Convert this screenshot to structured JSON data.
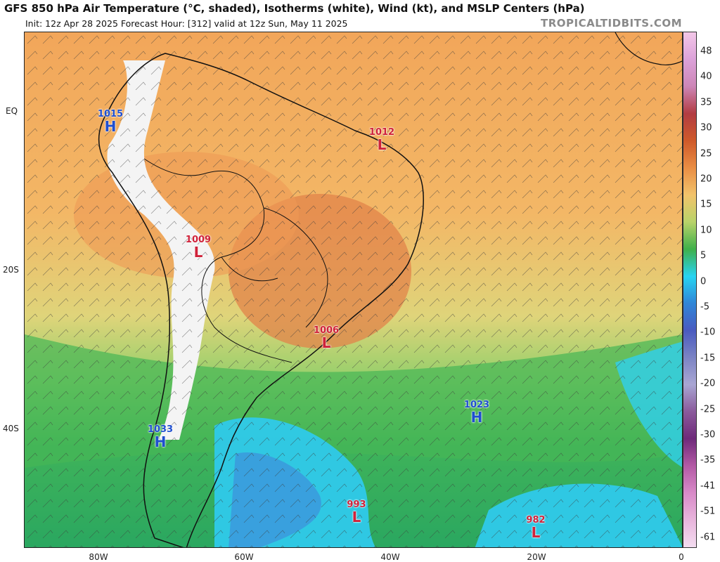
{
  "header": {
    "title": "GFS 850 hPa Air Temperature (°C, shaded), Isotherms (white), Wind (kt), and MSLP Centers (hPa)",
    "subtitle": "Init: 12z Apr 28 2025   Forecast Hour: [312]   valid at 12z Sun, May 11 2025",
    "brand": "TROPICALTIDBITS.COM"
  },
  "axes": {
    "lat_labels": [
      "EQ",
      "20S",
      "40S"
    ],
    "lon_labels": [
      "80W",
      "60W",
      "40W",
      "20W",
      "0"
    ]
  },
  "colorbar": {
    "labels": [
      "48",
      "40",
      "35",
      "30",
      "25",
      "20",
      "15",
      "10",
      "5",
      "0",
      "-5",
      "-10",
      "-15",
      "-20",
      "-25",
      "-30",
      "-35",
      "-41",
      "-51",
      "-61"
    ],
    "colors": [
      "#f3c7e8",
      "#dca2d9",
      "#cd86b7",
      "#b23c42",
      "#cf5a2a",
      "#e98d44",
      "#f2c36b",
      "#b9d36a",
      "#3fb04a",
      "#27d4f2",
      "#2f86d8",
      "#4a5bc0",
      "#7c84c4",
      "#a9a6d3",
      "#8a5a9b",
      "#6e2a7a",
      "#b35aa5",
      "#d88bc8",
      "#e8b5dc",
      "#f3dcf0"
    ]
  },
  "pressure_centers": [
    {
      "type": "H",
      "value": "1015",
      "color": "#1f4fd0"
    },
    {
      "type": "L",
      "value": "1012",
      "color": "#d0223a"
    },
    {
      "type": "L",
      "value": "1009",
      "color": "#d0223a"
    },
    {
      "type": "L",
      "value": "1006",
      "color": "#d0223a"
    },
    {
      "type": "H",
      "value": "1023",
      "color": "#1f4fd0"
    },
    {
      "type": "H",
      "value": "1033",
      "color": "#1f4fd0"
    },
    {
      "type": "L",
      "value": "993",
      "color": "#d0223a"
    },
    {
      "type": "L",
      "value": "982",
      "color": "#d0223a"
    }
  ]
}
